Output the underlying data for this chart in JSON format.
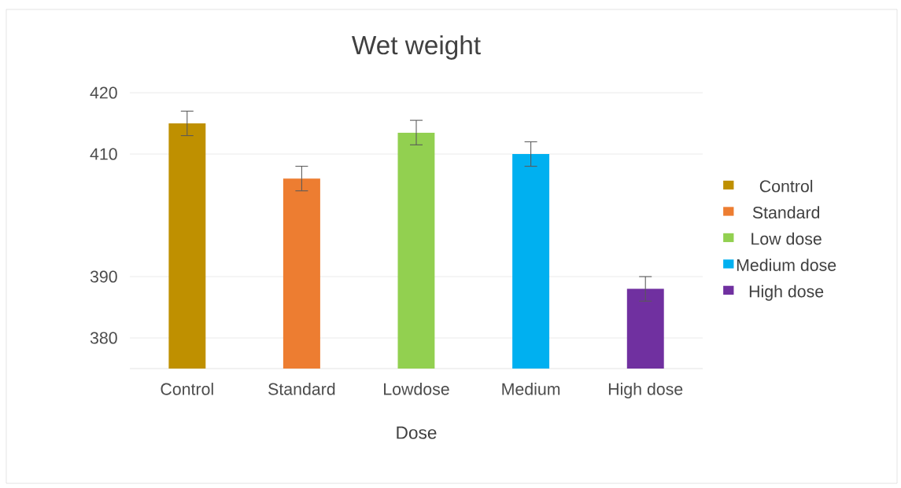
{
  "chart_data": {
    "type": "bar",
    "title": "Wet weight",
    "xlabel": "Dose",
    "categories": [
      "Control",
      "Standard",
      "Lowdose",
      "Medium",
      "High dose"
    ],
    "series": [
      {
        "name": "Control",
        "color": "#bf9000",
        "values": [
          415,
          null,
          null,
          null,
          null
        ],
        "errors": [
          2,
          null,
          null,
          null,
          null
        ]
      },
      {
        "name": "Standard",
        "color": "#ed7d31",
        "values": [
          null,
          406,
          null,
          null,
          null
        ],
        "errors": [
          null,
          2,
          null,
          null,
          null
        ]
      },
      {
        "name": "Low dose",
        "color": "#92d050",
        "values": [
          null,
          null,
          413.5,
          null,
          null
        ],
        "errors": [
          null,
          null,
          2,
          null,
          null
        ]
      },
      {
        "name": "Medium dose",
        "color": "#00b0f0",
        "values": [
          null,
          null,
          null,
          410,
          null
        ],
        "errors": [
          null,
          null,
          null,
          2,
          null
        ]
      },
      {
        "name": "High dose",
        "color": "#7030a0",
        "values": [
          null,
          null,
          null,
          null,
          388
        ],
        "errors": [
          null,
          null,
          null,
          null,
          2
        ]
      }
    ],
    "ylim": [
      375,
      420
    ],
    "yticks": [
      380,
      390,
      410,
      420
    ],
    "grid": "y",
    "legend": "right"
  }
}
